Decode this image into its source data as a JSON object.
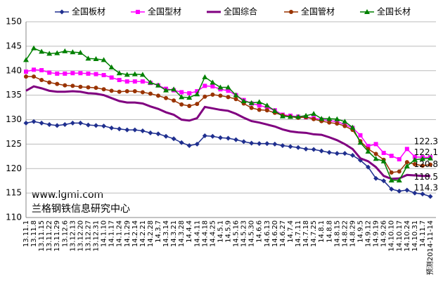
{
  "chart_data": {
    "type": "line",
    "categories": [
      "13.11.1",
      "13.11.8",
      "13.11.15",
      "13.11.22",
      "13.11.29",
      "13.12.6",
      "13.12.13",
      "13.12.20",
      "13.12.27",
      "13.12.31",
      "14.1.10",
      "14.1.17",
      "14.1.24",
      "14.1.29",
      "14.2.14",
      "14.2.21",
      "14.2.28",
      "14.3.7",
      "14.3.14",
      "14.3.21",
      "14.3.28",
      "14.4.4",
      "14.4.11",
      "14.4.18",
      "14.4.25",
      "14.5.1",
      "14.5.9",
      "14.5.16",
      "14.5.23",
      "14.5.30",
      "14.6.6",
      "14.6.13",
      "14.6.20",
      "14.6.27",
      "14.7.4",
      "14.7.11",
      "14.7.18",
      "14.7.25",
      "14.8.1",
      "14.8.8",
      "14.8.15",
      "14.8.22",
      "14.8.29",
      "14.9.5",
      "14.9.12",
      "14.9.19",
      "14.9.26",
      "14.10.10",
      "14.10.17",
      "14.10.24",
      "14.10.31",
      "14.11.7",
      "预测2014-11-14"
    ],
    "series": [
      {
        "name": "全国板材",
        "color": "#1f2f8f",
        "marker": "diamond",
        "values": [
          129.3,
          129.6,
          129.3,
          129.0,
          128.8,
          129.0,
          129.3,
          129.3,
          128.9,
          128.8,
          128.7,
          128.3,
          128.1,
          127.9,
          127.9,
          127.7,
          127.3,
          127.1,
          126.6,
          126.1,
          125.3,
          124.7,
          125.0,
          126.7,
          126.6,
          126.3,
          126.2,
          125.9,
          125.5,
          125.2,
          125.1,
          125.1,
          125.0,
          124.7,
          124.5,
          124.3,
          124.0,
          123.9,
          123.6,
          123.3,
          123.1,
          123.1,
          122.7,
          121.7,
          120.3,
          118.0,
          117.5,
          115.8,
          115.4,
          115.6,
          115.0,
          114.8,
          114.3
        ]
      },
      {
        "name": "全国型材",
        "color": "#ff00ff",
        "marker": "square",
        "values": [
          139.8,
          140.2,
          140.1,
          139.6,
          139.4,
          139.4,
          139.5,
          139.5,
          139.4,
          139.3,
          139.1,
          138.6,
          138.1,
          137.8,
          137.8,
          137.8,
          137.5,
          137.0,
          136.3,
          136.0,
          135.6,
          135.4,
          135.8,
          136.9,
          136.8,
          136.2,
          135.9,
          135.0,
          134.0,
          133.3,
          132.9,
          132.5,
          131.9,
          131.0,
          130.8,
          130.6,
          130.5,
          130.3,
          130.0,
          129.8,
          129.6,
          129.0,
          128.3,
          126.8,
          124.6,
          125.0,
          123.2,
          122.6,
          121.9,
          124.0,
          122.4,
          122.3,
          122.3
        ]
      },
      {
        "name": "全国综合",
        "color": "#800080",
        "marker": "none",
        "values": [
          135.9,
          136.8,
          136.4,
          135.9,
          135.7,
          135.7,
          135.8,
          135.7,
          135.4,
          135.3,
          135.0,
          134.4,
          133.8,
          133.5,
          133.5,
          133.3,
          132.7,
          132.2,
          131.5,
          131.0,
          130.0,
          129.8,
          130.3,
          132.6,
          132.3,
          132.0,
          131.8,
          131.2,
          130.4,
          129.7,
          129.4,
          129.0,
          128.6,
          128.0,
          127.6,
          127.4,
          127.3,
          127.0,
          126.9,
          126.4,
          125.8,
          125.0,
          124.0,
          122.1,
          121.5,
          120.3,
          118.5,
          117.9,
          118.0,
          118.7,
          118.6,
          118.5,
          118.5
        ]
      },
      {
        "name": "全国管材",
        "color": "#993300",
        "marker": "circle",
        "values": [
          138.8,
          138.8,
          138.1,
          137.6,
          137.3,
          137.0,
          136.9,
          136.7,
          136.6,
          136.5,
          136.2,
          135.9,
          135.7,
          135.8,
          135.8,
          135.6,
          135.3,
          134.9,
          134.4,
          133.9,
          133.1,
          132.8,
          133.2,
          134.7,
          135.1,
          134.9,
          134.6,
          134.2,
          133.3,
          132.4,
          132.0,
          131.9,
          131.4,
          130.9,
          130.6,
          130.4,
          130.5,
          130.1,
          129.7,
          129.4,
          129.2,
          128.7,
          127.9,
          125.6,
          124.0,
          123.0,
          121.8,
          119.2,
          119.4,
          121.3,
          120.9,
          120.6,
          120.8
        ]
      },
      {
        "name": "全国长材",
        "color": "#008000",
        "marker": "triangle",
        "values": [
          142.2,
          144.6,
          143.9,
          143.5,
          143.6,
          144.0,
          143.8,
          143.7,
          142.5,
          142.4,
          142.2,
          140.7,
          139.5,
          139.2,
          139.3,
          139.2,
          137.6,
          137.0,
          136.0,
          136.2,
          134.6,
          134.5,
          135.2,
          138.7,
          137.6,
          136.6,
          136.6,
          135.0,
          133.8,
          133.4,
          133.6,
          132.9,
          131.8,
          130.7,
          130.6,
          130.6,
          130.8,
          131.2,
          130.2,
          130.2,
          130.1,
          129.6,
          128.4,
          125.3,
          123.5,
          122.0,
          121.5,
          117.6,
          117.6,
          120.5,
          121.8,
          122.0,
          122.1
        ]
      }
    ],
    "ylim": [
      110,
      150
    ],
    "yticks": [
      110,
      115,
      120,
      125,
      130,
      135,
      140,
      145,
      150
    ],
    "grid": true,
    "legend": "top",
    "annotations": [
      "www.lgmi.com",
      "兰格钢铁信息研究中心"
    ]
  }
}
